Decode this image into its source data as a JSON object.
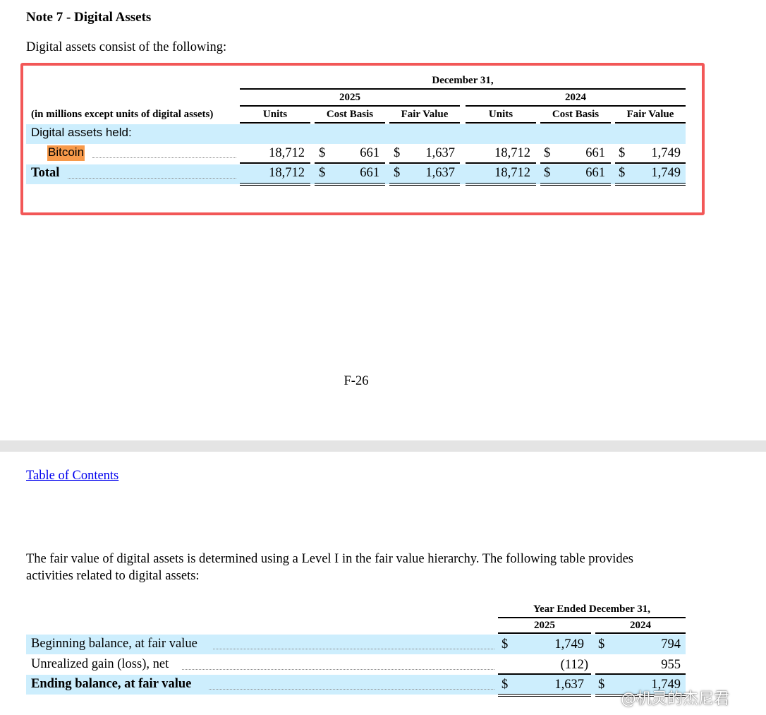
{
  "note_title": "Note 7 - Digital Assets",
  "intro": "Digital assets consist of the following:",
  "table1": {
    "period_header": "December 31,",
    "years": [
      "2025",
      "2024"
    ],
    "row_label_header": "(in millions except units of digital assets)",
    "columns": [
      "Units",
      "Cost Basis",
      "Fair Value",
      "Units",
      "Cost Basis",
      "Fair Value"
    ],
    "section_label": "Digital assets held:",
    "rows": [
      {
        "label": "Bitcoin",
        "units_2025": "18,712",
        "cost_2025": "661",
        "fair_2025": "1,637",
        "units_2024": "18,712",
        "cost_2024": "661",
        "fair_2024": "1,749"
      },
      {
        "label": "Total",
        "units_2025": "18,712",
        "cost_2025": "661",
        "fair_2025": "1,637",
        "units_2024": "18,712",
        "cost_2024": "661",
        "fair_2024": "1,749"
      }
    ],
    "currency": "$"
  },
  "page_number": "F-26",
  "toc_link": "Table of Contents",
  "paragraph": "The fair value of digital assets is determined using a Level I in the fair value hierarchy.  The following table provides activities related to digital assets:",
  "table2": {
    "period_header": "Year Ended December 31,",
    "years": [
      "2025",
      "2024"
    ],
    "currency": "$",
    "rows": [
      {
        "label": "Beginning balance, at fair value",
        "v2025": "1,749",
        "v2024": "794"
      },
      {
        "label": "Unrealized gain (loss), net",
        "v2025": "(112)",
        "v2024": "955"
      },
      {
        "label": "Ending balance, at fair value",
        "v2025": "1,637",
        "v2024": "1,749"
      }
    ]
  },
  "watermark": "@机灵的杰尼君",
  "colors": {
    "highlight_band": "#cdeefd",
    "red_box": "#f25757",
    "bitcoin_highlight": "#f89a4a",
    "link": "#0000ee",
    "page_break": "#e4e4e4"
  }
}
